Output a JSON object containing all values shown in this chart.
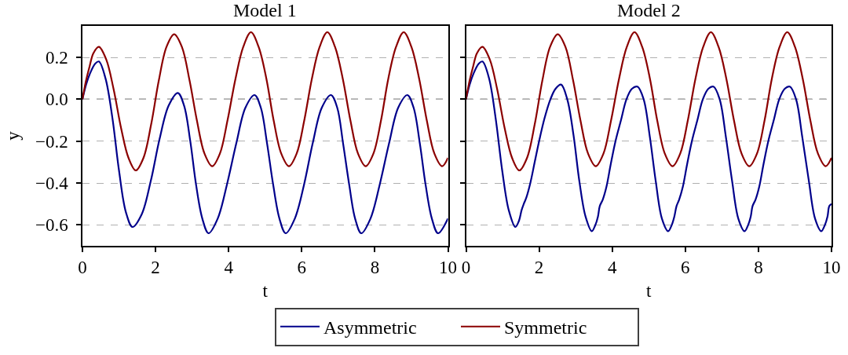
{
  "chart_data": [
    {
      "type": "line",
      "title": "Model 1",
      "xlabel": "t",
      "ylabel": "y",
      "xlim": [
        0,
        10
      ],
      "xticks": [
        0,
        2,
        4,
        6,
        8,
        10
      ],
      "ylim": [
        -0.7,
        0.35
      ],
      "yticks": [
        {
          "value": -0.6,
          "label": "−0.6"
        },
        {
          "value": -0.4,
          "label": "−0.4"
        },
        {
          "value": -0.2,
          "label": "−0.2"
        },
        {
          "value": 0,
          "label": "0.0"
        },
        {
          "value": 0.2,
          "label": "0.2"
        }
      ],
      "grid": "y",
      "legend": "bottom",
      "line_style": "solid",
      "ref_lines": [
        {
          "axis": "y",
          "value": 0,
          "color": "#808080",
          "line_style": "dashed"
        }
      ],
      "series": [
        {
          "name": "Asymmetric",
          "color": "#00008b",
          "x": [
            0,
            0.1,
            0.2,
            0.35,
            0.45,
            0.63,
            0.82,
            1.0,
            1.19,
            1.37,
            1.62,
            1.87,
            2.11,
            2.36,
            2.61,
            2.78,
            2.95,
            3.11,
            3.28,
            3.45,
            3.7,
            3.95,
            4.21,
            4.46,
            4.71,
            4.88,
            5.05,
            5.22,
            5.39,
            5.56,
            5.81,
            6.06,
            6.3,
            6.55,
            6.8,
            6.97,
            7.13,
            7.3,
            7.46,
            7.63,
            7.88,
            8.13,
            8.39,
            8.64,
            8.89,
            9.06,
            9.23,
            9.39,
            9.56,
            9.73,
            10
          ],
          "values": [
            0,
            0.07,
            0.12,
            0.17,
            0.18,
            0.1,
            -0.09,
            -0.34,
            -0.54,
            -0.61,
            -0.55,
            -0.39,
            -0.19,
            -0.03,
            0.03,
            -0.03,
            -0.2,
            -0.41,
            -0.57,
            -0.64,
            -0.57,
            -0.41,
            -0.21,
            -0.04,
            0.02,
            -0.04,
            -0.21,
            -0.41,
            -0.57,
            -0.64,
            -0.57,
            -0.41,
            -0.21,
            -0.04,
            0.02,
            -0.04,
            -0.21,
            -0.41,
            -0.57,
            -0.64,
            -0.57,
            -0.41,
            -0.21,
            -0.04,
            0.02,
            -0.04,
            -0.21,
            -0.41,
            -0.57,
            -0.64,
            -0.57
          ]
        },
        {
          "name": "Symmetric",
          "color": "#8b0000",
          "x": [
            0,
            0.1,
            0.2,
            0.3,
            0.45,
            0.65,
            0.85,
            1.06,
            1.26,
            1.46,
            1.67,
            1.88,
            2.09,
            2.3,
            2.51,
            2.72,
            2.93,
            3.13,
            3.34,
            3.55,
            3.76,
            3.97,
            4.19,
            4.4,
            4.61,
            4.82,
            5.03,
            5.23,
            5.44,
            5.65,
            5.86,
            6.07,
            6.28,
            6.49,
            6.7,
            6.91,
            7.12,
            7.33,
            7.54,
            7.75,
            7.96,
            8.17,
            8.37,
            8.58,
            8.79,
            9.0,
            9.21,
            9.42,
            9.63,
            9.84,
            10
          ],
          "values": [
            0,
            0.09,
            0.16,
            0.22,
            0.25,
            0.19,
            0.05,
            -0.14,
            -0.28,
            -0.34,
            -0.28,
            -0.12,
            0.09,
            0.25,
            0.31,
            0.25,
            0.09,
            -0.1,
            -0.26,
            -0.32,
            -0.26,
            -0.1,
            0.1,
            0.25,
            0.32,
            0.25,
            0.1,
            -0.1,
            -0.26,
            -0.32,
            -0.26,
            -0.1,
            0.1,
            0.25,
            0.32,
            0.25,
            0.1,
            -0.1,
            -0.26,
            -0.32,
            -0.26,
            -0.1,
            0.1,
            0.25,
            0.32,
            0.25,
            0.1,
            -0.1,
            -0.26,
            -0.32,
            -0.28
          ]
        }
      ]
    },
    {
      "type": "line",
      "title": "Model 2",
      "xlabel": "t",
      "xlim": [
        0,
        10
      ],
      "xticks": [
        0,
        2,
        4,
        6,
        8,
        10
      ],
      "ylim": [
        -0.7,
        0.35
      ],
      "yticks": [
        -0.6,
        -0.4,
        -0.2,
        0,
        0.2
      ],
      "tick_labels": "x",
      "grid": "y",
      "legend": "bottom",
      "line_style": "solid",
      "ref_lines": [
        {
          "axis": "y",
          "value": 0,
          "color": "#808080",
          "line_style": "dashed"
        }
      ],
      "series": [
        {
          "name": "Asymmetric",
          "color": "#00008b",
          "x": [
            0,
            0.1,
            0.2,
            0.35,
            0.45,
            0.63,
            0.81,
            0.99,
            1.17,
            1.35,
            1.45,
            1.52,
            1.58,
            1.65,
            1.76,
            1.88,
            2.0,
            2.15,
            2.31,
            2.45,
            2.6,
            2.77,
            2.94,
            3.1,
            3.27,
            3.44,
            3.54,
            3.61,
            3.66,
            3.74,
            3.84,
            3.96,
            4.09,
            4.24,
            4.39,
            4.54,
            4.69,
            4.86,
            5.03,
            5.19,
            5.36,
            5.53,
            5.63,
            5.7,
            5.76,
            5.83,
            5.93,
            6.05,
            6.18,
            6.33,
            6.48,
            6.63,
            6.77,
            6.94,
            7.11,
            7.28,
            7.45,
            7.62,
            7.72,
            7.79,
            7.84,
            7.92,
            8.02,
            8.14,
            8.27,
            8.42,
            8.57,
            8.72,
            8.86,
            9.03,
            9.2,
            9.38,
            9.55,
            9.72,
            9.82,
            9.89,
            9.94,
            10
          ],
          "values": [
            0,
            0.07,
            0.12,
            0.17,
            0.18,
            0.1,
            -0.09,
            -0.34,
            -0.53,
            -0.61,
            -0.58,
            -0.53,
            -0.5,
            -0.47,
            -0.4,
            -0.3,
            -0.2,
            -0.09,
            0,
            0.05,
            0.07,
            0,
            -0.17,
            -0.39,
            -0.56,
            -0.63,
            -0.6,
            -0.56,
            -0.51,
            -0.48,
            -0.42,
            -0.31,
            -0.2,
            -0.1,
            0,
            0.05,
            0.06,
            0,
            -0.18,
            -0.39,
            -0.57,
            -0.63,
            -0.6,
            -0.56,
            -0.51,
            -0.48,
            -0.42,
            -0.31,
            -0.2,
            -0.1,
            0,
            0.05,
            0.06,
            0,
            -0.18,
            -0.39,
            -0.57,
            -0.63,
            -0.6,
            -0.56,
            -0.51,
            -0.48,
            -0.42,
            -0.31,
            -0.2,
            -0.1,
            0,
            0.05,
            0.06,
            0,
            -0.18,
            -0.39,
            -0.57,
            -0.63,
            -0.6,
            -0.56,
            -0.51,
            -0.5
          ]
        },
        {
          "name": "Symmetric",
          "color": "#8b0000",
          "x": [
            0,
            0.1,
            0.2,
            0.3,
            0.45,
            0.65,
            0.85,
            1.06,
            1.26,
            1.46,
            1.67,
            1.88,
            2.09,
            2.3,
            2.51,
            2.72,
            2.93,
            3.13,
            3.34,
            3.55,
            3.76,
            3.97,
            4.19,
            4.4,
            4.61,
            4.82,
            5.03,
            5.23,
            5.44,
            5.65,
            5.86,
            6.07,
            6.28,
            6.49,
            6.7,
            6.91,
            7.12,
            7.33,
            7.54,
            7.75,
            7.96,
            8.17,
            8.37,
            8.58,
            8.79,
            9.0,
            9.21,
            9.42,
            9.63,
            9.84,
            10
          ],
          "values": [
            0,
            0.09,
            0.16,
            0.22,
            0.25,
            0.19,
            0.05,
            -0.14,
            -0.28,
            -0.34,
            -0.28,
            -0.12,
            0.09,
            0.25,
            0.31,
            0.25,
            0.09,
            -0.1,
            -0.26,
            -0.32,
            -0.26,
            -0.1,
            0.1,
            0.25,
            0.32,
            0.25,
            0.1,
            -0.1,
            -0.26,
            -0.32,
            -0.26,
            -0.1,
            0.1,
            0.25,
            0.32,
            0.25,
            0.1,
            -0.1,
            -0.26,
            -0.32,
            -0.26,
            -0.1,
            0.1,
            0.25,
            0.32,
            0.25,
            0.1,
            -0.1,
            -0.26,
            -0.32,
            -0.28
          ]
        }
      ]
    }
  ]
}
